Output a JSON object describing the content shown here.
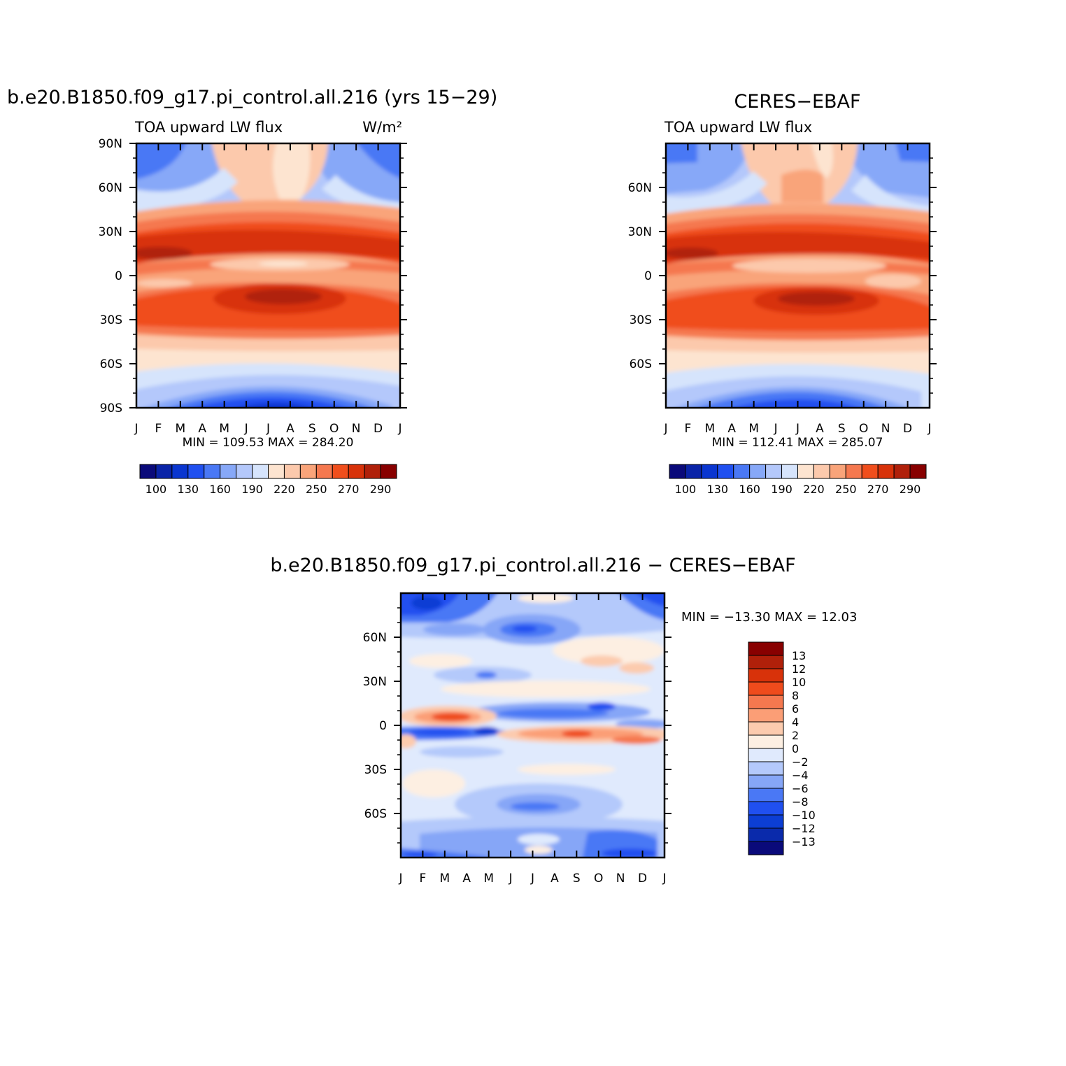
{
  "months": [
    "J",
    "F",
    "M",
    "A",
    "M",
    "J",
    "J",
    "A",
    "S",
    "O",
    "N",
    "D",
    "J"
  ],
  "colors": {
    "abs": [
      "#0a0a7a",
      "#0a24a8",
      "#0a36d0",
      "#2050f0",
      "#4a78f5",
      "#87a8f8",
      "#b4c8fb",
      "#d6e4fc",
      "#fde4d0",
      "#fcc9ac",
      "#f9a47a",
      "#f5784f",
      "#f04e1c",
      "#d8320a",
      "#b0200a",
      "#880000"
    ],
    "diff": [
      "#0a0a7a",
      "#0a2aab",
      "#0c3ed4",
      "#2050f0",
      "#4a78f5",
      "#86a6f7",
      "#b4c9fb",
      "#e0eafd",
      "#fdefe2",
      "#fccbae",
      "#fb9e76",
      "#f5784f",
      "#ef4b1c",
      "#d8320a",
      "#b0200a",
      "#880000"
    ]
  },
  "panels": [
    {
      "title": "b.e20.B1850.f09_g17.pi_control.all.216 (yrs 15−29)",
      "left_label": "TOA upward LW flux",
      "right_label": "W/m²",
      "stats": "MIN =  109.53  MAX =  284.20",
      "yticks": [
        "90N",
        "60N",
        "30N",
        "0",
        "30S",
        "60S",
        "90S"
      ],
      "colorbar_labels": [
        "100",
        "130",
        "160",
        "190",
        "220",
        "250",
        "270",
        "290"
      ]
    },
    {
      "title": "CERES−EBAF",
      "left_label": "TOA upward LW flux",
      "right_label": "",
      "stats": "MIN =  112.41  MAX =  285.07",
      "yticks": [
        "60N",
        "30N",
        "0",
        "30S",
        "60S"
      ],
      "colorbar_labels": [
        "100",
        "130",
        "160",
        "190",
        "220",
        "250",
        "270",
        "290"
      ]
    },
    {
      "title": "b.e20.B1850.f09_g17.pi_control.all.216  −  CERES−EBAF",
      "stats": "MIN = −13.30  MAX =   12.03",
      "yticks": [
        "60N",
        "30N",
        "0",
        "30S",
        "60S"
      ],
      "colorbar_labels": [
        "13",
        "12",
        "10",
        "8",
        "6",
        "4",
        "2",
        "0",
        "−2",
        "−4",
        "−6",
        "−8",
        "−10",
        "−12",
        "−13"
      ]
    }
  ],
  "chart_data": [
    {
      "type": "heatmap",
      "title": "b.e20.B1850.f09_g17.pi_control.all.216 (yrs 15−29)",
      "variable": "TOA upward LW flux",
      "units": "W/m²",
      "x": [
        "J",
        "F",
        "M",
        "A",
        "M",
        "J",
        "J",
        "A",
        "S",
        "O",
        "N",
        "D",
        "J"
      ],
      "y": [
        "90N",
        "60N",
        "30N",
        "0",
        "30S",
        "60S",
        "90S"
      ],
      "ylim": [
        -90,
        90
      ],
      "min": 109.53,
      "max": 284.2,
      "colorbar_levels": [
        100,
        110,
        120,
        130,
        140,
        150,
        160,
        170,
        180,
        190,
        200,
        210,
        220,
        230,
        240,
        250,
        260,
        270,
        280,
        290
      ]
    },
    {
      "type": "heatmap",
      "title": "CERES−EBAF",
      "variable": "TOA upward LW flux",
      "x": [
        "J",
        "F",
        "M",
        "A",
        "M",
        "J",
        "J",
        "A",
        "S",
        "O",
        "N",
        "D",
        "J"
      ],
      "y": [
        "60N",
        "30N",
        "0",
        "30S",
        "60S"
      ],
      "min": 112.41,
      "max": 285.07
    },
    {
      "type": "heatmap",
      "title": "b.e20.B1850.f09_g17.pi_control.all.216  −  CERES−EBAF",
      "x": [
        "J",
        "F",
        "M",
        "A",
        "M",
        "J",
        "J",
        "A",
        "S",
        "O",
        "N",
        "D",
        "J"
      ],
      "y": [
        "60N",
        "30N",
        "0",
        "30S",
        "60S"
      ],
      "min": -13.3,
      "max": 12.03,
      "colorbar_levels": [
        13,
        12,
        10,
        8,
        6,
        4,
        2,
        0,
        -2,
        -4,
        -6,
        -8,
        -10,
        -12,
        -13
      ]
    }
  ]
}
